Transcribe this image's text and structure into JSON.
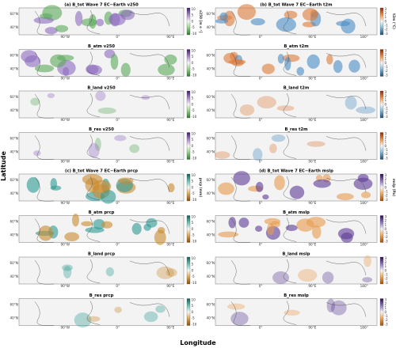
{
  "axis_labels": {
    "y": "Latitude",
    "x": "Longitude"
  },
  "lat_ticks": [
    "60°N",
    "40°N"
  ],
  "columns": [
    {
      "lon_ticks": [
        "90°W",
        "0°",
        "90°E"
      ],
      "groups": [
        {
          "colorbar_label": "v250 [m s⁻¹]",
          "colorbar_ticks": [
            10,
            5,
            0,
            -5,
            -10
          ],
          "panels": [
            "(a) B_tot Wave 7 EC−Earth v250",
            "B_atm v250",
            "B_land v250",
            "B_res v250"
          ]
        },
        {
          "colorbar_label": "prcp (mm)",
          "colorbar_ticks": [
            10,
            5,
            0,
            -5,
            -10
          ],
          "panels": [
            "(c) B_tot Wave 7 EC−Earth prcp",
            "B_atm prcp",
            "B_land prcp",
            "B_res prcp"
          ]
        }
      ]
    },
    {
      "lon_ticks": [
        "0°",
        "90°E",
        "180°"
      ],
      "groups": [
        {
          "colorbar_label": "t2m (°C)",
          "colorbar_ticks": [
            3,
            2,
            1,
            0,
            -1,
            -2,
            -3
          ],
          "panels": [
            "(b) B_tot Wave 7 EC−Earth t2m",
            "B_atm t2m",
            "B_land t2m",
            "B_res t2m"
          ]
        },
        {
          "colorbar_label": "mslp (Pa)",
          "colorbar_ticks": [
            3,
            2,
            1,
            0,
            -1,
            -2,
            -3
          ],
          "panels": [
            "(d) B_tot Wave 7 EC−Earth mslp",
            "B_atm mslp",
            "B_land mslp",
            "B_res mslp"
          ]
        }
      ]
    }
  ]
}
